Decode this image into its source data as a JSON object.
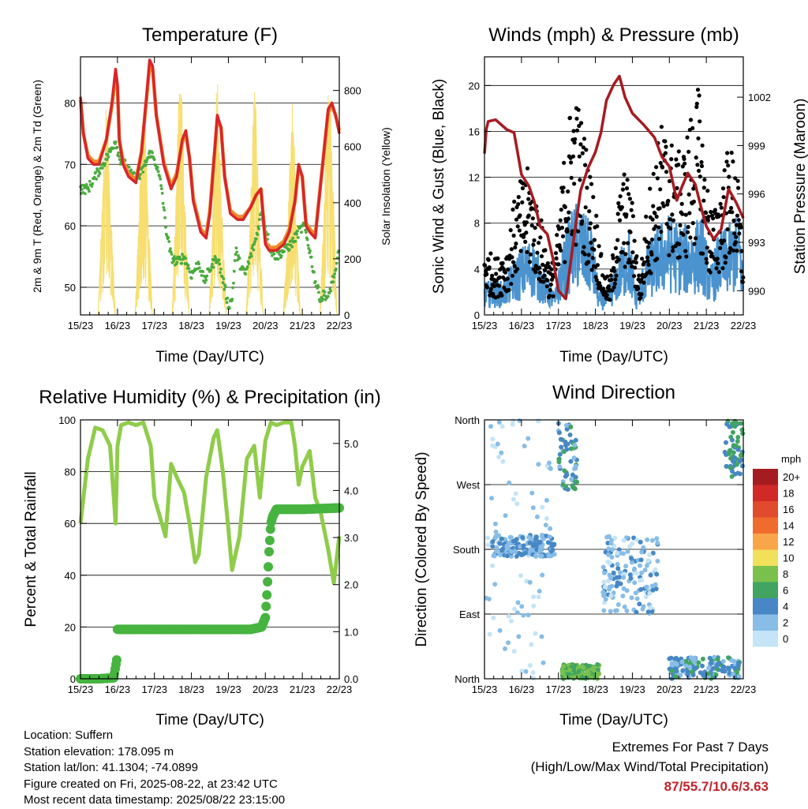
{
  "footer": {
    "location": "Location: Suffern",
    "elevation": "Station elevation: 178.095 m",
    "latlon": "Station lat/lon: 41.1304; -74.0899",
    "created": "Figure created on Fri, 2025-08-22, at 23:42 UTC",
    "recent": "Most recent data timestamp: 2025/08/22 23:15:00"
  },
  "extremes": {
    "title": "Extremes For Past 7 Days",
    "subtitle": "(High/Low/Max Wind/Total Precipitation)",
    "values": "87/55.7/10.6/3.63"
  },
  "colors": {
    "temp_red": "#d7262a",
    "temp_orange": "#f08a2b",
    "dewpoint_green": "#4bab3e",
    "solar_yellow": "#f7de6e",
    "wind_blue": "#4a93cf",
    "gust_black": "#000000",
    "pressure_maroon": "#a61b21",
    "rh_lightgreen": "#8fcc4a",
    "precip_green": "#46b43f"
  },
  "chart_data": [
    {
      "id": "temperature",
      "type": "line",
      "title": "Temperature (F)",
      "xlabel": "Time (Day/UTC)",
      "ylabel": "2m & 9m T (Red, Orange) & 2m Td (Green)",
      "y2label": "Solar Insolation (Yellow)",
      "x_tick_labels": [
        "15/23",
        "16/23",
        "17/23",
        "18/23",
        "19/23",
        "20/23",
        "21/23",
        "22/23"
      ],
      "xlim": [
        0,
        7
      ],
      "ylim": [
        45.5,
        87.5
      ],
      "yticks": [
        50,
        60,
        70,
        80
      ],
      "y2lim": [
        0,
        920
      ],
      "y2ticks": [
        0,
        200,
        400,
        600,
        800
      ],
      "grid": true,
      "series": [
        {
          "key": "t2m",
          "x": [
            0,
            0.08,
            0.2,
            0.35,
            0.5,
            0.7,
            0.85,
            0.95,
            1.0,
            1.05,
            1.15,
            1.3,
            1.5,
            1.65,
            1.8,
            1.87,
            1.95,
            2.05,
            2.25,
            2.45,
            2.6,
            2.75,
            2.85,
            2.95,
            3.05,
            3.25,
            3.4,
            3.5,
            3.6,
            3.7,
            3.8,
            3.9,
            4.05,
            4.25,
            4.4,
            4.6,
            4.75,
            4.88,
            5.0,
            5.1,
            5.3,
            5.5,
            5.65,
            5.8,
            5.9,
            6.0,
            6.1,
            6.2,
            6.35,
            6.55,
            6.7,
            6.8,
            6.9,
            7.0
          ],
          "values": [
            81,
            75,
            71,
            70,
            70,
            74,
            80,
            85.5,
            83,
            74,
            70,
            68,
            67,
            72,
            82,
            87,
            86,
            78,
            70,
            66,
            68,
            74,
            75.5,
            71,
            64,
            59,
            58,
            62,
            70,
            78,
            76,
            68,
            62,
            61,
            61,
            63,
            65,
            66,
            57,
            56,
            56,
            57,
            59,
            64,
            70,
            68,
            60,
            59,
            58,
            70,
            79,
            80,
            78,
            75
          ]
        },
        {
          "key": "t9m",
          "x": [
            0,
            0.08,
            0.2,
            0.35,
            0.5,
            0.7,
            0.85,
            0.95,
            1.0,
            1.05,
            1.15,
            1.3,
            1.5,
            1.65,
            1.8,
            1.87,
            1.95,
            2.05,
            2.25,
            2.45,
            2.6,
            2.75,
            2.85,
            2.95,
            3.05,
            3.25,
            3.4,
            3.5,
            3.6,
            3.7,
            3.8,
            3.9,
            4.05,
            4.25,
            4.4,
            4.6,
            4.75,
            4.88,
            5.0,
            5.1,
            5.3,
            5.5,
            5.65,
            5.8,
            5.9,
            6.0,
            6.1,
            6.2,
            6.35,
            6.55,
            6.7,
            6.8,
            6.9,
            7.0
          ],
          "values": [
            80.5,
            75,
            71.5,
            70.5,
            70.5,
            74,
            79.5,
            84.5,
            82.5,
            74,
            70.5,
            68.5,
            67.5,
            72,
            81.5,
            86,
            85.5,
            78,
            70.5,
            66.5,
            68.5,
            73.5,
            75,
            71,
            64.5,
            59.5,
            58.5,
            62.5,
            70,
            77.5,
            76,
            68,
            62.5,
            61.5,
            61.5,
            63,
            65,
            66,
            57.5,
            56.5,
            56.5,
            57.5,
            59.5,
            64,
            69.5,
            68,
            60.5,
            59.5,
            58.5,
            70,
            78.5,
            79.5,
            78,
            75.5
          ]
        },
        {
          "key": "td2m",
          "x": [
            0,
            0.2,
            0.4,
            0.6,
            0.8,
            0.95,
            1.05,
            1.2,
            1.4,
            1.6,
            1.75,
            1.9,
            2.05,
            2.2,
            2.3,
            2.45,
            2.6,
            2.8,
            3.0,
            3.2,
            3.35,
            3.5,
            3.7,
            3.9,
            4.0,
            4.1,
            4.2,
            4.3,
            4.45,
            4.6,
            4.75,
            4.88,
            5.0,
            5.15,
            5.3,
            5.5,
            5.7,
            5.9,
            6.05,
            6.2,
            6.35,
            6.5,
            6.6,
            6.7,
            6.8,
            6.9,
            7.0
          ],
          "values": [
            66,
            66,
            68,
            70,
            72,
            74,
            71,
            70,
            68,
            68,
            70,
            72,
            70,
            66,
            60,
            55,
            54,
            55,
            52,
            54,
            51,
            53,
            55,
            50,
            47,
            48,
            56,
            54,
            52,
            55,
            58,
            62,
            60,
            56,
            55,
            56,
            57,
            59,
            60,
            56,
            51,
            48,
            49,
            48,
            51,
            52,
            57
          ]
        },
        {
          "key": "solar",
          "axis": "y2",
          "x": [
            0.58,
            0.64,
            0.7,
            0.76,
            0.82,
            1.58,
            1.64,
            1.7,
            1.76,
            1.82,
            2.58,
            2.64,
            2.7,
            2.76,
            2.82,
            3.58,
            3.64,
            3.7,
            3.76,
            3.82,
            4.58,
            4.64,
            4.7,
            4.76,
            4.82,
            5.58,
            5.64,
            5.7,
            5.76,
            5.82,
            6.58,
            6.64,
            6.7,
            6.76,
            6.82
          ],
          "values": [
            600,
            720,
            760,
            680,
            520,
            560,
            700,
            780,
            720,
            560,
            650,
            820,
            860,
            780,
            600,
            600,
            760,
            880,
            720,
            560,
            500,
            700,
            820,
            760,
            560,
            350,
            520,
            700,
            820,
            560,
            620,
            760,
            840,
            800,
            700
          ]
        }
      ]
    },
    {
      "id": "winds",
      "type": "scatter",
      "title": "Winds (mph) & Pressure (mb)",
      "xlabel": "Time (Day/UTC)",
      "ylabel": "Sonic Wind & Gust (Blue, Black)",
      "y2label": "Station Pressure (Maroon)",
      "x_tick_labels": [
        "15/23",
        "16/23",
        "17/23",
        "18/23",
        "19/23",
        "20/23",
        "21/23",
        "22/23"
      ],
      "xlim": [
        0,
        7
      ],
      "ylim": [
        0,
        22.5
      ],
      "yticks": [
        0,
        4,
        8,
        12,
        16,
        20
      ],
      "y2lim": [
        988.5,
        1004.5
      ],
      "y2ticks": [
        990,
        993,
        996,
        999,
        1002
      ],
      "grid": true,
      "series": [
        {
          "key": "wind_envelope",
          "x": [
            0,
            0.5,
            0.8,
            1.0,
            1.3,
            1.6,
            1.9,
            2.0,
            2.3,
            2.5,
            2.7,
            2.9,
            3.1,
            3.3,
            3.6,
            3.9,
            4.1,
            4.4,
            4.7,
            5.0,
            5.3,
            5.6,
            5.9,
            6.1,
            6.3,
            6.6,
            6.9,
            7.0
          ],
          "values": [
            3,
            3,
            5,
            6,
            7,
            4,
            2,
            4,
            9,
            10,
            9,
            8,
            2,
            2,
            5,
            8,
            2,
            6,
            8,
            9,
            8,
            8,
            9,
            4,
            7,
            8,
            9,
            4
          ]
        },
        {
          "key": "gust_envelope",
          "x": [
            0,
            0.3,
            0.6,
            0.8,
            1.0,
            1.2,
            1.5,
            1.8,
            2.0,
            2.2,
            2.4,
            2.6,
            2.8,
            3.0,
            3.2,
            3.4,
            3.6,
            3.8,
            4.0,
            4.2,
            4.4,
            4.6,
            4.8,
            5.0,
            5.2,
            5.4,
            5.6,
            5.8,
            6.0,
            6.2,
            6.4,
            6.6,
            6.8,
            7.0
          ],
          "values": [
            6,
            5,
            6,
            10,
            12,
            13,
            9,
            4,
            8,
            16,
            20,
            18,
            14,
            10,
            4,
            3,
            10,
            13,
            10,
            3,
            10,
            14,
            17,
            16,
            14,
            15,
            18,
            20,
            12,
            9,
            12,
            15,
            14,
            6
          ]
        },
        {
          "key": "pressure",
          "axis": "y2",
          "x": [
            0,
            0.05,
            0.1,
            0.3,
            0.6,
            0.8,
            0.9,
            1.0,
            1.2,
            1.35,
            1.5,
            1.7,
            1.85,
            2.0,
            2.2,
            2.4,
            2.6,
            2.8,
            3.0,
            3.15,
            3.3,
            3.5,
            3.65,
            3.8,
            4.0,
            4.3,
            4.6,
            4.8,
            5.0,
            5.2,
            5.35,
            5.5,
            5.7,
            5.9,
            6.0,
            6.2,
            6.4,
            6.6,
            6.8,
            7.0
          ],
          "values": [
            998.5,
            1000,
            1000.5,
            1000.6,
            1000,
            999.8,
            998.5,
            997.2,
            996.5,
            995.5,
            994,
            993.5,
            992,
            990,
            989.5,
            993,
            996.2,
            997.6,
            998.6,
            999.8,
            1001.8,
            1002.8,
            1003.3,
            1002,
            1001,
            1000.3,
            999.5,
            998.3,
            997.7,
            995.6,
            996.5,
            997.3,
            996.6,
            994.8,
            994,
            993.2,
            993.8,
            996.3,
            995.5,
            994.5
          ]
        }
      ]
    },
    {
      "id": "humidity",
      "type": "line",
      "title": "Relative Humidity (%) & Precipitation (in)",
      "xlabel": "Time (Day/UTC)",
      "ylabel": "Percent & Total Rainfall",
      "x_tick_labels": [
        "15/23",
        "16/23",
        "17/23",
        "18/23",
        "19/23",
        "20/23",
        "21/23",
        "22/23"
      ],
      "xlim": [
        0,
        7
      ],
      "ylim": [
        0,
        100
      ],
      "yticks": [
        0,
        20,
        40,
        60,
        80,
        100
      ],
      "y2lim": [
        0,
        5.5
      ],
      "y2ticks": [
        "0.0",
        "1.0",
        "2.0",
        "3.0",
        "4.0",
        "5.0"
      ],
      "grid": true,
      "series": [
        {
          "key": "rh",
          "x": [
            0,
            0.2,
            0.4,
            0.6,
            0.8,
            0.9,
            0.95,
            1.0,
            1.1,
            1.3,
            1.5,
            1.7,
            1.9,
            2.0,
            2.2,
            2.3,
            2.45,
            2.6,
            2.8,
            2.95,
            3.1,
            3.2,
            3.4,
            3.6,
            3.7,
            3.85,
            4.0,
            4.1,
            4.3,
            4.5,
            4.7,
            4.85,
            5.0,
            5.15,
            5.3,
            5.5,
            5.7,
            5.8,
            5.9,
            6.0,
            6.2,
            6.35,
            6.5,
            6.7,
            6.85,
            7.0
          ],
          "values": [
            60,
            85,
            97,
            96,
            90,
            70,
            60,
            90,
            98,
            99,
            98,
            99,
            90,
            70,
            60,
            55,
            83,
            78,
            72,
            60,
            45,
            48,
            78,
            93,
            96,
            80,
            58,
            42,
            55,
            85,
            90,
            70,
            92,
            99,
            98,
            99,
            99,
            90,
            75,
            82,
            88,
            70,
            64,
            50,
            37,
            55
          ]
        },
        {
          "key": "precip",
          "axis": "y2",
          "x": [
            0,
            0.5,
            0.9,
            0.98,
            1.0,
            1.3,
            2.0,
            3.0,
            4.0,
            4.6,
            4.9,
            5.0,
            5.05,
            5.1,
            5.15,
            5.2,
            5.3,
            6.0,
            7.0
          ],
          "values": [
            0,
            0,
            0.02,
            0.4,
            1.05,
            1.05,
            1.05,
            1.05,
            1.05,
            1.05,
            1.1,
            1.3,
            1.9,
            2.7,
            3.3,
            3.45,
            3.6,
            3.6,
            3.63
          ]
        }
      ]
    },
    {
      "id": "direction",
      "type": "scatter",
      "title": "Wind Direction",
      "xlabel": "Time (Day/UTC)",
      "ylabel": "Direction (Colored By Speed)",
      "x_tick_labels": [
        "15/23",
        "16/23",
        "17/23",
        "18/23",
        "19/23",
        "20/23",
        "21/23",
        "22/23"
      ],
      "xlim": [
        0,
        7
      ],
      "ytick_labels": [
        "North",
        "East",
        "South",
        "West",
        "North"
      ],
      "legend": {
        "title": "mph",
        "labels": [
          "20+",
          "18",
          "16",
          "14",
          "12",
          "10",
          "8",
          "6",
          "4",
          "2",
          "0"
        ],
        "colors": [
          "#a51c20",
          "#d12a26",
          "#e14a2c",
          "#f06b2e",
          "#f9a64a",
          "#f1e05a",
          "#7ac04d",
          "#41a561",
          "#4787c5",
          "#87bde6",
          "#c4e4f7"
        ]
      },
      "clusters": [
        {
          "x": [
            0.0,
            1.8
          ],
          "dir": [
            0,
            360
          ],
          "speed": 1,
          "density": "sparse"
        },
        {
          "x": [
            0.2,
            1.9
          ],
          "dir": [
            170,
            200
          ],
          "speed": 3,
          "density": "dense"
        },
        {
          "x": [
            2.1,
            3.1
          ],
          "dir": [
            0,
            20
          ],
          "speed": 7,
          "density": "dense"
        },
        {
          "x": [
            2.0,
            2.5
          ],
          "dir": [
            260,
            360
          ],
          "speed": 4,
          "density": "medium"
        },
        {
          "x": [
            3.2,
            4.7
          ],
          "dir": [
            90,
            200
          ],
          "speed": 2,
          "density": "dense"
        },
        {
          "x": [
            5.0,
            6.9
          ],
          "dir": [
            0,
            30
          ],
          "speed": 4,
          "density": "dense"
        },
        {
          "x": [
            6.5,
            7.0
          ],
          "dir": [
            280,
            360
          ],
          "speed": 5,
          "density": "medium"
        }
      ]
    }
  ]
}
